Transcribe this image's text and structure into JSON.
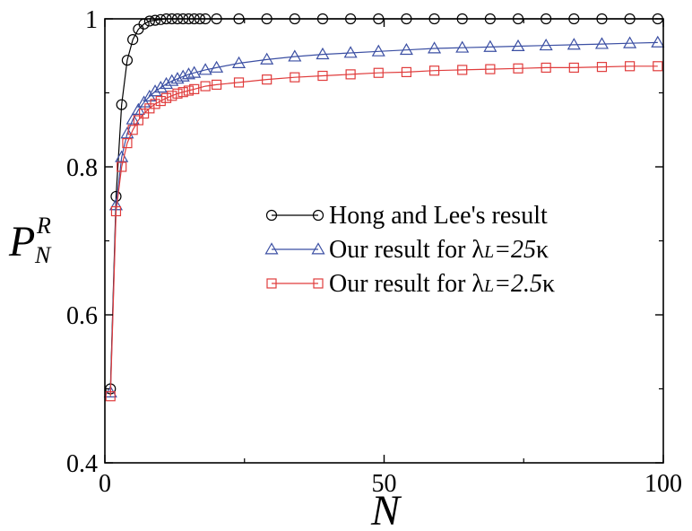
{
  "chart_data": {
    "type": "line",
    "xlabel": "N",
    "ylabel": {
      "base": "P",
      "sub": "N",
      "sup": "R"
    },
    "xlim": [
      0,
      100
    ],
    "ylim": [
      0.4,
      1.0
    ],
    "xticks": [
      {
        "value": 0,
        "label": "0"
      },
      {
        "value": 50,
        "label": "50"
      },
      {
        "value": 100,
        "label": "100"
      }
    ],
    "yticks": [
      {
        "value": 0.4,
        "label": "0.4"
      },
      {
        "value": 0.6,
        "label": "0.6"
      },
      {
        "value": 0.8,
        "label": "0.8"
      },
      {
        "value": 1.0,
        "label": "1"
      }
    ],
    "grid": false,
    "legend_position": "center-right",
    "series": [
      {
        "name": "Hong and Lee's result",
        "name_parts": [
          {
            "text": "Hong and Lee's result",
            "italic": false
          }
        ],
        "color": "#000000",
        "marker": "circle",
        "x": [
          1,
          2,
          3,
          4,
          5,
          6,
          7,
          8,
          9,
          10,
          11,
          12,
          13,
          14,
          15,
          16,
          17,
          18,
          20,
          24,
          29,
          34,
          39,
          44,
          49,
          54,
          59,
          64,
          69,
          74,
          79,
          84,
          89,
          94,
          99
        ],
        "y": [
          0.5,
          0.76,
          0.884,
          0.944,
          0.972,
          0.986,
          0.993,
          0.997,
          0.998,
          0.999,
          1.0,
          1.0,
          1.0,
          1.0,
          1.0,
          1.0,
          1.0,
          1.0,
          1.0,
          1.0,
          1.0,
          1.0,
          1.0,
          1.0,
          1.0,
          1.0,
          1.0,
          1.0,
          1.0,
          1.0,
          1.0,
          1.0,
          1.0,
          1.0,
          1.0
        ]
      },
      {
        "name": "Our result for λL=25κ",
        "name_parts": [
          {
            "text": "Our result for λ",
            "italic": false
          },
          {
            "text": "L",
            "italic": true,
            "small": true
          },
          {
            "text": "=25",
            "italic": true
          },
          {
            "text": "κ",
            "italic": false
          }
        ],
        "color": "#3b4fa3",
        "marker": "triangle",
        "x": [
          1,
          2,
          3,
          4,
          5,
          6,
          7,
          8,
          9,
          10,
          11,
          12,
          13,
          14,
          15,
          16,
          18,
          20,
          24,
          29,
          34,
          39,
          44,
          49,
          54,
          59,
          64,
          69,
          74,
          79,
          84,
          89,
          94,
          99
        ],
        "y": [
          0.495,
          0.748,
          0.813,
          0.845,
          0.864,
          0.877,
          0.887,
          0.895,
          0.902,
          0.907,
          0.912,
          0.916,
          0.919,
          0.922,
          0.925,
          0.927,
          0.931,
          0.934,
          0.94,
          0.945,
          0.949,
          0.952,
          0.954,
          0.956,
          0.958,
          0.96,
          0.961,
          0.962,
          0.963,
          0.964,
          0.965,
          0.966,
          0.967,
          0.968
        ]
      },
      {
        "name": "Our result for λL=2.5κ",
        "name_parts": [
          {
            "text": "Our result for λ",
            "italic": false
          },
          {
            "text": "L",
            "italic": true,
            "small": true
          },
          {
            "text": "=2.5",
            "italic": true
          },
          {
            "text": "κ",
            "italic": false
          }
        ],
        "color": "#e03c3c",
        "marker": "square",
        "x": [
          1,
          2,
          3,
          4,
          5,
          6,
          7,
          8,
          9,
          10,
          11,
          12,
          13,
          14,
          15,
          16,
          18,
          20,
          24,
          29,
          34,
          39,
          44,
          49,
          54,
          59,
          64,
          69,
          74,
          79,
          84,
          89,
          94,
          99
        ],
        "y": [
          0.49,
          0.74,
          0.8,
          0.832,
          0.85,
          0.863,
          0.872,
          0.879,
          0.885,
          0.889,
          0.893,
          0.896,
          0.899,
          0.901,
          0.903,
          0.905,
          0.909,
          0.911,
          0.914,
          0.918,
          0.921,
          0.923,
          0.925,
          0.927,
          0.928,
          0.93,
          0.931,
          0.932,
          0.933,
          0.934,
          0.934,
          0.935,
          0.936,
          0.936
        ]
      }
    ]
  }
}
